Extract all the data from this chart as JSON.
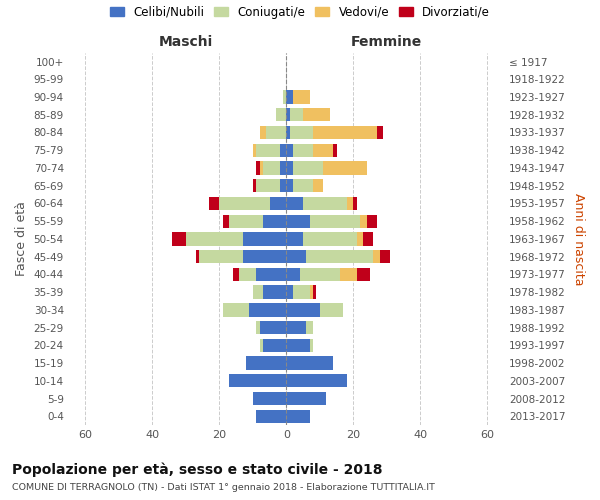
{
  "age_groups": [
    "0-4",
    "5-9",
    "10-14",
    "15-19",
    "20-24",
    "25-29",
    "30-34",
    "35-39",
    "40-44",
    "45-49",
    "50-54",
    "55-59",
    "60-64",
    "65-69",
    "70-74",
    "75-79",
    "80-84",
    "85-89",
    "90-94",
    "95-99",
    "100+"
  ],
  "birth_years": [
    "2013-2017",
    "2008-2012",
    "2003-2007",
    "1998-2002",
    "1993-1997",
    "1988-1992",
    "1983-1987",
    "1978-1982",
    "1973-1977",
    "1968-1972",
    "1963-1967",
    "1958-1962",
    "1953-1957",
    "1948-1952",
    "1943-1947",
    "1938-1942",
    "1933-1937",
    "1928-1932",
    "1923-1927",
    "1918-1922",
    "≤ 1917"
  ],
  "colors": {
    "celibi": "#4472c4",
    "coniugati": "#c5d9a0",
    "vedovi": "#f0c060",
    "divorziati": "#c0001a"
  },
  "maschi": {
    "celibi": [
      9,
      10,
      17,
      12,
      7,
      8,
      11,
      7,
      9,
      13,
      13,
      7,
      5,
      2,
      2,
      2,
      0,
      0,
      0,
      0,
      0
    ],
    "coniugati": [
      0,
      0,
      0,
      0,
      1,
      1,
      8,
      3,
      5,
      13,
      17,
      10,
      15,
      7,
      5,
      7,
      6,
      3,
      1,
      0,
      0
    ],
    "vedovi": [
      0,
      0,
      0,
      0,
      0,
      0,
      0,
      0,
      0,
      0,
      0,
      0,
      0,
      0,
      1,
      1,
      2,
      0,
      0,
      0,
      0
    ],
    "divorziati": [
      0,
      0,
      0,
      0,
      0,
      0,
      0,
      0,
      2,
      1,
      4,
      2,
      3,
      1,
      1,
      0,
      0,
      0,
      0,
      0,
      0
    ]
  },
  "femmine": {
    "celibi": [
      7,
      12,
      18,
      14,
      7,
      6,
      10,
      2,
      4,
      6,
      5,
      7,
      5,
      2,
      2,
      2,
      1,
      1,
      2,
      0,
      0
    ],
    "coniugati": [
      0,
      0,
      0,
      0,
      1,
      2,
      7,
      5,
      12,
      20,
      16,
      15,
      13,
      6,
      9,
      6,
      7,
      4,
      0,
      0,
      0
    ],
    "vedovi": [
      0,
      0,
      0,
      0,
      0,
      0,
      0,
      1,
      5,
      2,
      2,
      2,
      2,
      3,
      13,
      6,
      19,
      8,
      5,
      0,
      0
    ],
    "divorziati": [
      0,
      0,
      0,
      0,
      0,
      0,
      0,
      1,
      4,
      3,
      3,
      3,
      1,
      0,
      0,
      1,
      2,
      0,
      0,
      0,
      0
    ]
  },
  "xlim": 65,
  "title": "Popolazione per età, sesso e stato civile - 2018",
  "subtitle": "COMUNE DI TERRAGNOLO (TN) - Dati ISTAT 1° gennaio 2018 - Elaborazione TUTTITALIA.IT",
  "ylabel_left": "Fasce di età",
  "ylabel_right": "Anni di nascita",
  "xlabel_left": "Maschi",
  "xlabel_right": "Femmine",
  "legend_labels": [
    "Celibi/Nubili",
    "Coniugati/e",
    "Vedovi/e",
    "Divorziati/e"
  ],
  "background_color": "#ffffff",
  "grid_color": "#cccccc"
}
